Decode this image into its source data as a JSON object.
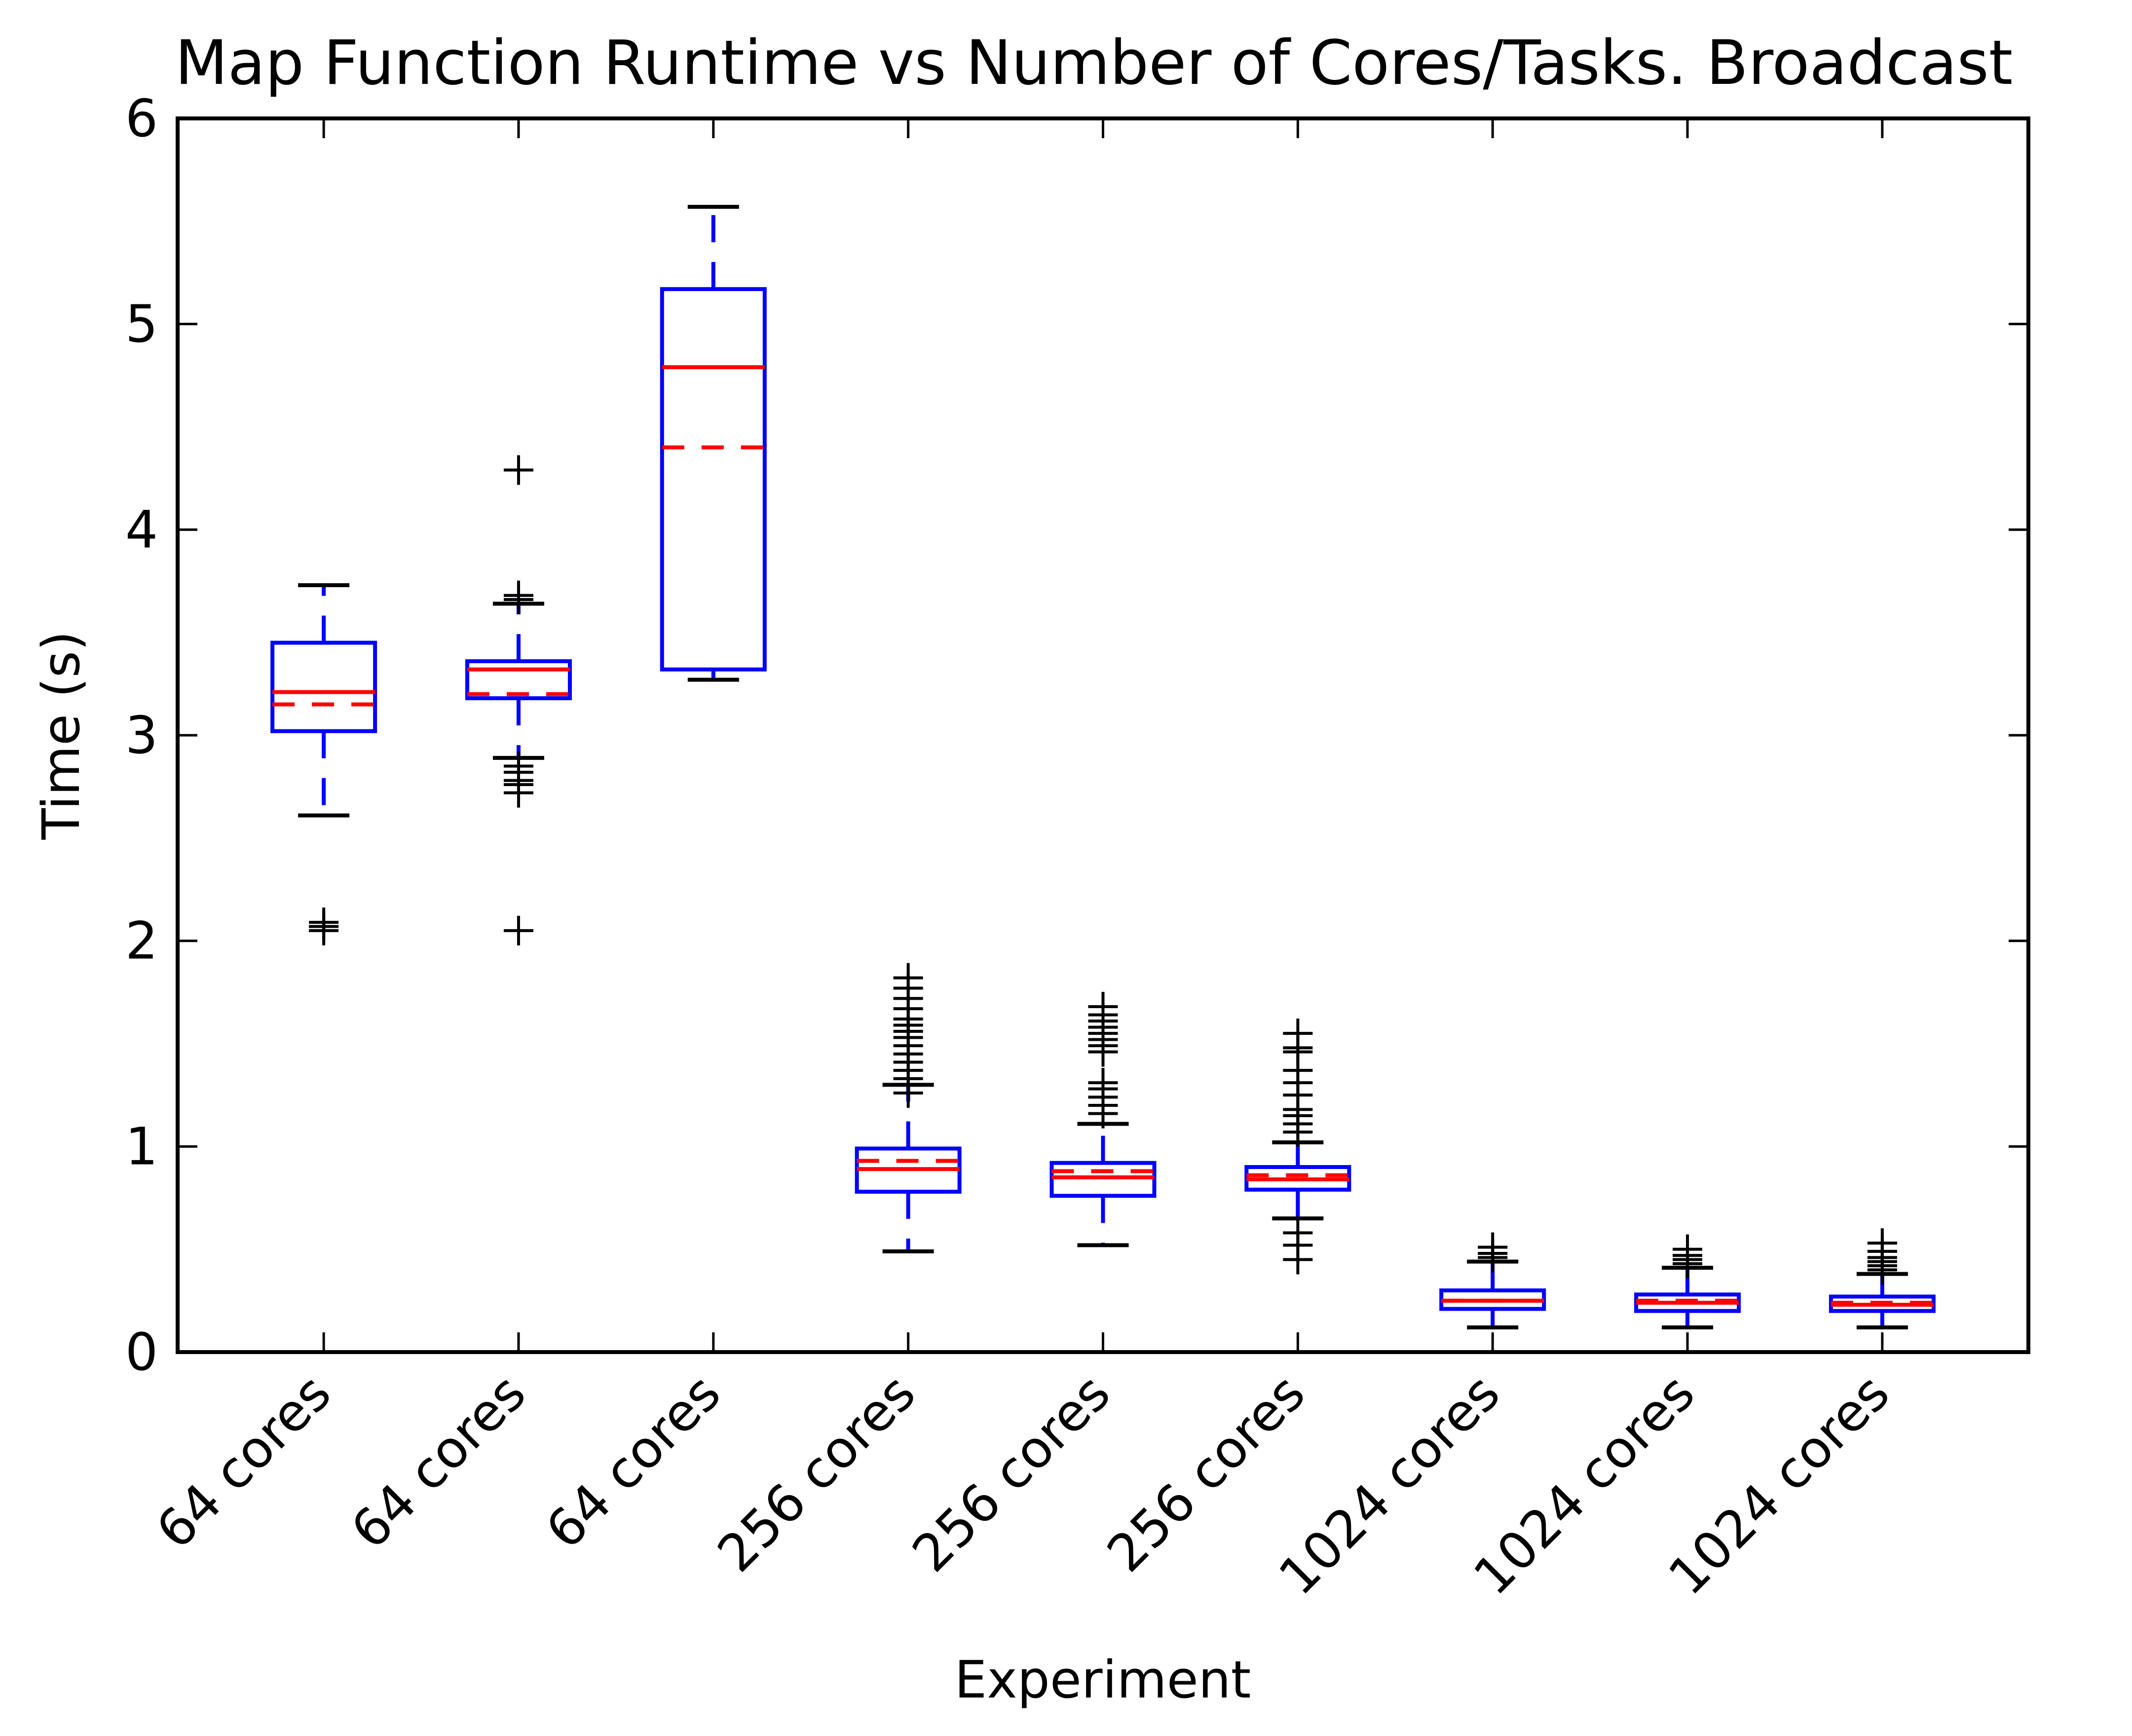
{
  "chart_data": {
    "type": "box",
    "title": "Map Function Runtime vs Number of Cores/Tasks. Broadcast",
    "xlabel": "Experiment",
    "ylabel": "Time (s)",
    "ylim": [
      0,
      6
    ],
    "yticks": [
      "0",
      "1",
      "2",
      "3",
      "4",
      "5",
      "6"
    ],
    "categories": [
      "64 cores",
      "64 cores",
      "64 cores",
      "256 cores",
      "256 cores",
      "256 cores",
      "1024 cores",
      "1024 cores",
      "1024 cores"
    ],
    "grid": false,
    "legend": "none",
    "colors": {
      "box": "#0000ff",
      "median": "#ff0000",
      "mean": "#ff0000",
      "whisker_cap": "#000000",
      "flier": "#000000"
    },
    "boxes": [
      {
        "whislo": 2.61,
        "q1": 3.02,
        "med": 3.21,
        "mean": 3.15,
        "q3": 3.45,
        "whishi": 3.73,
        "fliers": [
          2.05,
          2.07,
          2.09
        ]
      },
      {
        "whislo": 2.89,
        "q1": 3.18,
        "med": 3.32,
        "mean": 3.2,
        "q3": 3.36,
        "whishi": 3.64,
        "fliers": [
          2.05,
          2.72,
          2.76,
          2.78,
          2.82,
          2.85,
          3.66,
          3.68,
          4.29
        ]
      },
      {
        "whislo": 3.27,
        "q1": 3.32,
        "med": 4.79,
        "mean": 4.4,
        "q3": 5.17,
        "whishi": 5.57,
        "fliers": []
      },
      {
        "whislo": 0.49,
        "q1": 0.78,
        "med": 0.89,
        "mean": 0.93,
        "q3": 0.99,
        "whishi": 1.3,
        "fliers": [
          1.26,
          1.33,
          1.37,
          1.41,
          1.45,
          1.49,
          1.53,
          1.56,
          1.59,
          1.62,
          1.67,
          1.72,
          1.77,
          1.82
        ]
      },
      {
        "whislo": 0.52,
        "q1": 0.76,
        "med": 0.85,
        "mean": 0.88,
        "q3": 0.92,
        "whishi": 1.11,
        "fliers": [
          1.16,
          1.2,
          1.24,
          1.28,
          1.31,
          1.46,
          1.49,
          1.52,
          1.55,
          1.58,
          1.61,
          1.64,
          1.68
        ]
      },
      {
        "whislo": 0.65,
        "q1": 0.79,
        "med": 0.84,
        "mean": 0.86,
        "q3": 0.9,
        "whishi": 1.02,
        "fliers": [
          0.45,
          0.52,
          0.58,
          1.07,
          1.11,
          1.15,
          1.18,
          1.25,
          1.31,
          1.37,
          1.46,
          1.48,
          1.55
        ]
      },
      {
        "whislo": 0.12,
        "q1": 0.21,
        "med": 0.25,
        "mean": 0.25,
        "q3": 0.3,
        "whishi": 0.44,
        "fliers": [
          0.46,
          0.48,
          0.51
        ]
      },
      {
        "whislo": 0.12,
        "q1": 0.2,
        "med": 0.24,
        "mean": 0.25,
        "q3": 0.28,
        "whishi": 0.41,
        "fliers": [
          0.43,
          0.45,
          0.47,
          0.5
        ]
      },
      {
        "whislo": 0.12,
        "q1": 0.2,
        "med": 0.23,
        "mean": 0.24,
        "q3": 0.27,
        "whishi": 0.38,
        "fliers": [
          0.4,
          0.42,
          0.44,
          0.46,
          0.49,
          0.53
        ]
      }
    ]
  }
}
